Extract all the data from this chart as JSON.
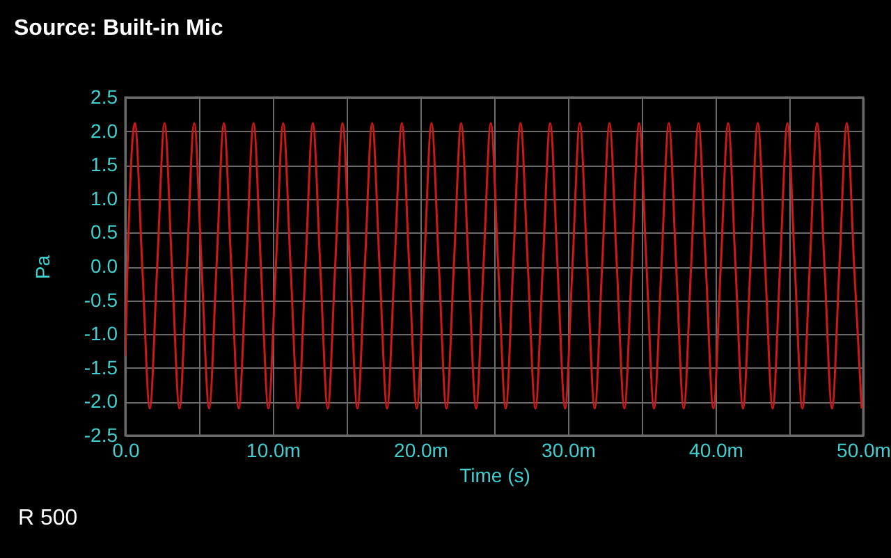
{
  "chart_data": {
    "type": "line",
    "title": "Source:  Built-in Mic",
    "xlabel": "Time (s)",
    "ylabel": "Pa",
    "annotations": [
      "R 500"
    ],
    "xlim": [
      0,
      50
    ],
    "ylim": [
      -2.5,
      2.5
    ],
    "xticks": [
      {
        "value": 0,
        "label": "0.0"
      },
      {
        "value": 5,
        "label": null
      },
      {
        "value": 10,
        "label": "10.0m"
      },
      {
        "value": 15,
        "label": null
      },
      {
        "value": 20,
        "label": "20.0m"
      },
      {
        "value": 25,
        "label": null
      },
      {
        "value": 30,
        "label": "30.0m"
      },
      {
        "value": 35,
        "label": null
      },
      {
        "value": 40,
        "label": "40.0m"
      },
      {
        "value": 45,
        "label": null
      },
      {
        "value": 50,
        "label": "50.0m"
      }
    ],
    "yticks": [
      {
        "value": -2.5,
        "label": "-2.5"
      },
      {
        "value": -2,
        "label": "-2.0"
      },
      {
        "value": -1.5,
        "label": "-1.5"
      },
      {
        "value": -1,
        "label": "-1.0"
      },
      {
        "value": -0.5,
        "label": "-0.5"
      },
      {
        "value": 0,
        "label": "0.0"
      },
      {
        "value": 0.5,
        "label": "0.5"
      },
      {
        "value": 1,
        "label": "1.0"
      },
      {
        "value": 1.5,
        "label": "1.5"
      },
      {
        "value": 2,
        "label": "2.0"
      },
      {
        "value": 2.5,
        "label": "2.5"
      }
    ],
    "grid": true,
    "series": [
      {
        "color": "#d01818",
        "x": [
          0,
          0.15,
          0.65,
          1.15,
          1.66,
          2.16,
          2.66,
          3.16,
          3.67,
          4.17,
          4.67,
          5.17,
          5.68,
          6.18,
          6.68,
          7.18,
          7.69,
          8.19,
          8.69,
          9.19,
          9.7,
          10.2,
          10.7,
          11.2,
          11.71,
          12.21,
          12.71,
          13.21,
          13.72,
          14.22,
          14.72,
          15.22,
          15.73,
          16.23,
          16.73,
          17.23,
          17.74,
          18.24,
          18.74,
          19.24,
          19.75,
          20.25,
          20.75,
          21.25,
          21.76,
          22.26,
          22.76,
          23.26,
          23.77,
          24.27,
          24.77,
          25.27,
          25.78,
          26.28,
          26.78,
          27.28,
          27.79,
          28.29,
          28.79,
          29.29,
          29.8,
          30.3,
          30.8,
          31.3,
          31.81,
          32.31,
          32.81,
          33.31,
          33.82,
          34.32,
          34.82,
          35.32,
          35.83,
          36.33,
          36.83,
          37.33,
          37.84,
          38.34,
          38.84,
          39.34,
          39.85,
          40.35,
          40.85,
          41.35,
          41.86,
          42.36,
          42.86,
          43.36,
          43.87,
          44.37,
          44.87,
          45.37,
          45.88,
          46.38,
          46.88,
          47.38,
          47.89,
          48.39,
          48.89,
          49.39,
          49.9
        ],
        "values": [
          -1.33,
          0,
          2.12,
          0,
          -2.1,
          0,
          2.12,
          0,
          -2.1,
          0,
          2.12,
          0,
          -2.1,
          0,
          2.12,
          0,
          -2.1,
          0,
          2.12,
          0,
          -2.1,
          0,
          2.12,
          0,
          -2.1,
          0,
          2.12,
          0,
          -2.1,
          0,
          2.12,
          0,
          -2.1,
          0,
          2.12,
          0,
          -2.1,
          0,
          2.12,
          0,
          -2.1,
          0,
          2.12,
          0,
          -2.1,
          0,
          2.12,
          0,
          -2.1,
          0,
          2.12,
          0,
          -2.1,
          0,
          2.12,
          0,
          -2.1,
          0,
          2.12,
          0,
          -2.1,
          0,
          2.12,
          0,
          -2.1,
          0,
          2.12,
          0,
          -2.1,
          0,
          2.12,
          0,
          -2.1,
          0,
          2.12,
          0,
          -2.1,
          0,
          2.12,
          0,
          -2.1,
          0,
          2.12,
          0,
          -2.1,
          0,
          2.12,
          0,
          -2.1,
          0,
          2.12,
          0,
          -2.1,
          0,
          2.12,
          0,
          -2.1,
          0,
          2.12,
          0,
          -2.1
        ]
      }
    ]
  }
}
